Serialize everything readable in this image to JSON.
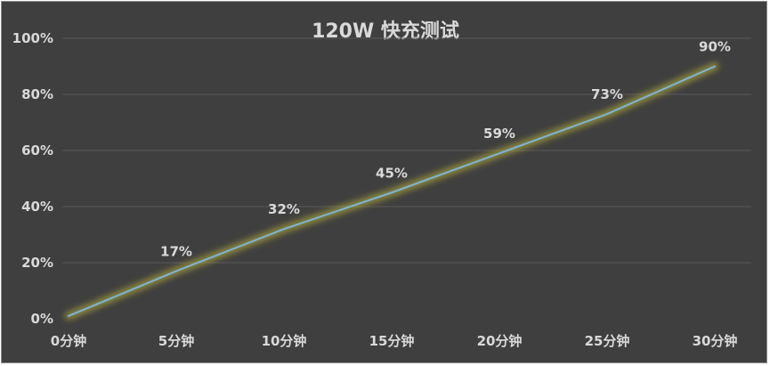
{
  "chart_data": {
    "type": "line",
    "title": "120W 快充测试",
    "categories": [
      "0分钟",
      "5分钟",
      "10分钟",
      "15分钟",
      "20分钟",
      "25分钟",
      "30分钟"
    ],
    "data_labels": [
      "17%",
      "32%",
      "45%",
      "59%",
      "73%",
      "90%"
    ],
    "series": [
      {
        "values": [
          1,
          17,
          32,
          45,
          59,
          73,
          90
        ],
        "color": "#7fb3d5",
        "glow_color": "#c9c23a"
      }
    ],
    "y_tick_labels": [
      "0%",
      "20%",
      "40%",
      "60%",
      "80%",
      "100%"
    ],
    "y_ticks": [
      0,
      20,
      40,
      60,
      80,
      100
    ],
    "ylim": [
      0,
      100
    ],
    "xlabel": "",
    "ylabel": "",
    "grid": true,
    "legend": "none",
    "background_color": "#3f3f3f",
    "text_color": "#d9d9d9",
    "gridline_color": "#595959"
  }
}
